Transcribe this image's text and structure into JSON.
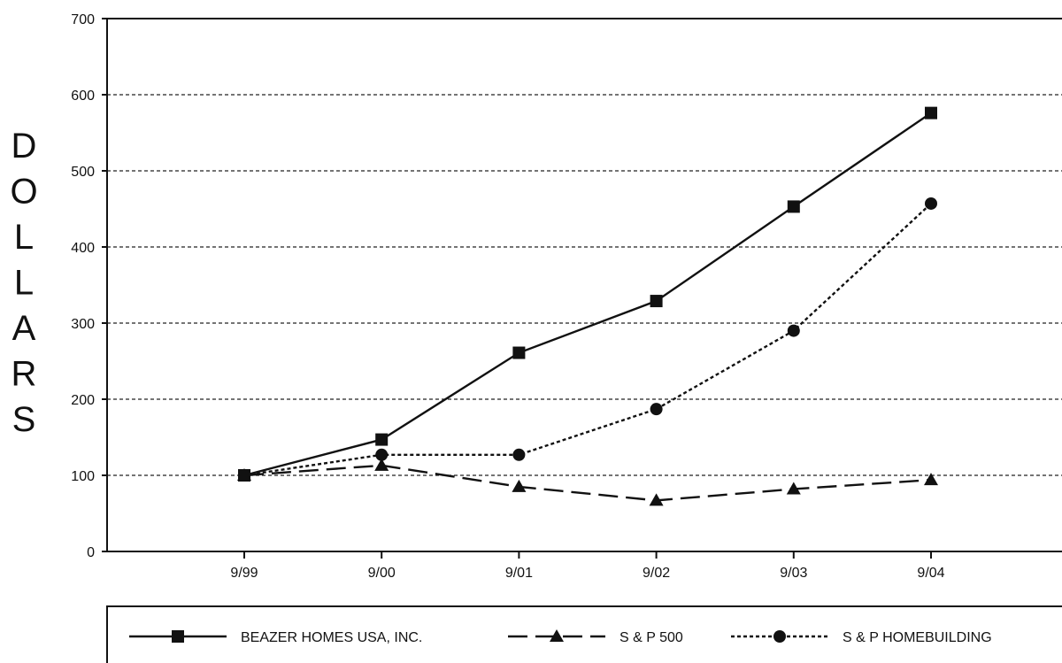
{
  "chart_data": {
    "type": "line",
    "title": "",
    "xlabel": "",
    "ylabel": "DOLLARS",
    "categories": [
      "9/99",
      "9/00",
      "9/01",
      "9/02",
      "9/03",
      "9/04"
    ],
    "ylim": [
      0,
      700
    ],
    "yticks": [
      0,
      100,
      200,
      300,
      400,
      500,
      600,
      700
    ],
    "grid": "horizontal dashed",
    "legend_position": "bottom",
    "series": [
      {
        "name": "BEAZER HOMES USA, INC.",
        "style": "solid",
        "marker": "square",
        "values": [
          100,
          147,
          261,
          329,
          453,
          576
        ]
      },
      {
        "name": "S & P 500",
        "style": "dashed",
        "marker": "triangle",
        "values": [
          100,
          113,
          85,
          67,
          82,
          94
        ]
      },
      {
        "name": "S & P HOMEBUILDING",
        "style": "dotted",
        "marker": "circle",
        "values": [
          100,
          127,
          127,
          187,
          290,
          457
        ]
      }
    ],
    "colors": {
      "line": "#111111",
      "grid": "#222222",
      "background": "#ffffff"
    }
  }
}
